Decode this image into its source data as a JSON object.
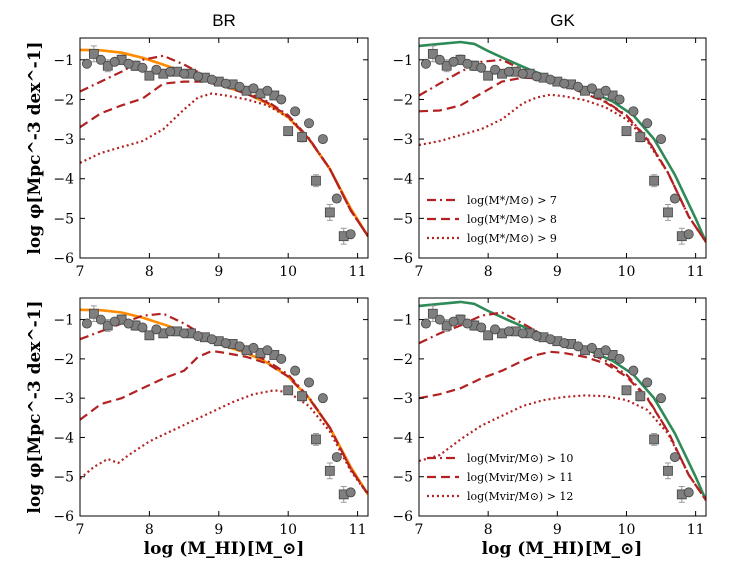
{
  "figure": {
    "xlabel": "log (M_HI)[M_⊙]",
    "ylabel": "log φ[Mpc^-3 dex^-1]",
    "xlim": [
      7.0,
      11.15
    ],
    "ylim": [
      -6.0,
      -0.45
    ],
    "xticks": [
      7,
      8,
      9,
      10,
      11
    ],
    "yticks": [
      -1,
      -2,
      -3,
      -4,
      -5,
      -6
    ]
  },
  "chart_data": [
    {
      "type": "line",
      "title": "BR",
      "model": "BR",
      "model_color": "#ff8c00",
      "model_line": {
        "x": [
          7.0,
          7.3,
          7.6,
          7.9,
          8.2,
          8.5,
          8.8,
          9.1,
          9.4,
          9.7,
          10.0,
          10.3,
          10.6,
          10.9,
          11.15
        ],
        "y": [
          -0.75,
          -0.76,
          -0.82,
          -0.95,
          -1.12,
          -1.3,
          -1.5,
          -1.68,
          -1.85,
          -2.1,
          -2.45,
          -3.0,
          -3.75,
          -4.75,
          -5.45
        ]
      },
      "series": [
        {
          "name": "log(M*/M⊙) > 7",
          "style": "dashdot",
          "color": "#b22222",
          "x": [
            7.0,
            7.3,
            7.6,
            7.9,
            8.2,
            8.5,
            8.8,
            9.1,
            9.4,
            9.7,
            10.0,
            10.3,
            10.6,
            10.9,
            11.15
          ],
          "y": [
            -1.8,
            -1.55,
            -1.3,
            -1.0,
            -0.9,
            -1.12,
            -1.4,
            -1.65,
            -1.82,
            -2.05,
            -2.4,
            -2.98,
            -3.75,
            -4.8,
            -5.45
          ]
        },
        {
          "name": "log(M*/M⊙) > 8",
          "style": "dashed",
          "color": "#b22222",
          "x": [
            7.0,
            7.3,
            7.6,
            7.9,
            8.2,
            8.5,
            8.8,
            9.1,
            9.4,
            9.7,
            10.0,
            10.3,
            10.6,
            10.9,
            11.15
          ],
          "y": [
            -2.7,
            -2.35,
            -2.15,
            -1.98,
            -1.6,
            -1.55,
            -1.55,
            -1.68,
            -1.86,
            -2.08,
            -2.42,
            -3.0,
            -3.75,
            -4.8,
            -5.45
          ]
        },
        {
          "name": "log(M*/M⊙) > 9",
          "style": "dotted",
          "color": "#b22222",
          "x": [
            7.0,
            7.3,
            7.6,
            7.9,
            8.2,
            8.5,
            8.7,
            8.9,
            9.1,
            9.4,
            9.7,
            10.0,
            10.3,
            10.6,
            10.9,
            11.15
          ],
          "y": [
            -3.6,
            -3.35,
            -3.2,
            -3.05,
            -2.75,
            -2.25,
            -1.95,
            -1.85,
            -1.9,
            -2.0,
            -2.15,
            -2.45,
            -3.0,
            -3.75,
            -4.8,
            -5.45
          ]
        }
      ],
      "legend": false
    },
    {
      "type": "line",
      "title": "GK",
      "model": "GK",
      "model_color": "#2e8b57",
      "model_line": {
        "x": [
          7.0,
          7.3,
          7.6,
          7.8,
          8.0,
          8.3,
          8.6,
          8.9,
          9.2,
          9.5,
          9.8,
          10.1,
          10.4,
          10.7,
          11.0,
          11.15
        ],
        "y": [
          -0.65,
          -0.6,
          -0.55,
          -0.6,
          -0.78,
          -1.02,
          -1.25,
          -1.45,
          -1.62,
          -1.82,
          -2.05,
          -2.4,
          -3.0,
          -3.9,
          -5.0,
          -5.6
        ]
      },
      "series": [
        {
          "name": "log(M*/M⊙) > 7",
          "style": "dashdot",
          "color": "#b22222",
          "x": [
            7.0,
            7.3,
            7.6,
            7.9,
            8.2,
            8.5,
            8.8,
            9.1,
            9.4,
            9.7,
            10.0,
            10.3,
            10.6,
            10.9,
            11.15
          ],
          "y": [
            -1.9,
            -1.6,
            -1.3,
            -1.05,
            -1.0,
            -1.25,
            -1.4,
            -1.62,
            -1.82,
            -2.05,
            -2.4,
            -2.98,
            -3.85,
            -4.95,
            -5.6
          ]
        },
        {
          "name": "log(M*/M⊙) > 8",
          "style": "dashed",
          "color": "#b22222",
          "x": [
            7.0,
            7.3,
            7.6,
            7.9,
            8.2,
            8.5,
            8.8,
            9.1,
            9.4,
            9.7,
            10.0,
            10.3,
            10.6,
            10.9,
            11.15
          ],
          "y": [
            -2.3,
            -2.28,
            -2.15,
            -1.85,
            -1.55,
            -1.45,
            -1.48,
            -1.65,
            -1.85,
            -2.07,
            -2.42,
            -3.0,
            -3.85,
            -4.95,
            -5.6
          ]
        },
        {
          "name": "log(M*/M⊙) > 9",
          "style": "dotted",
          "color": "#b22222",
          "x": [
            7.0,
            7.3,
            7.6,
            7.9,
            8.2,
            8.5,
            8.7,
            8.9,
            9.1,
            9.4,
            9.7,
            10.0,
            10.3,
            10.6,
            10.9,
            11.15
          ],
          "y": [
            -3.15,
            -3.05,
            -2.9,
            -2.75,
            -2.5,
            -2.1,
            -1.95,
            -1.88,
            -1.92,
            -2.02,
            -2.2,
            -2.5,
            -3.05,
            -3.85,
            -4.95,
            -5.6
          ]
        }
      ],
      "legend": true,
      "legend_position": "lower-left",
      "legend_labels": [
        "log(M*/M⊙) > 7",
        "log(M*/M⊙) > 8",
        "log(M*/M⊙) > 9"
      ]
    },
    {
      "type": "line",
      "title": "",
      "model": "BR",
      "model_color": "#ff8c00",
      "model_line": {
        "x": [
          7.0,
          7.3,
          7.6,
          7.9,
          8.2,
          8.5,
          8.8,
          9.1,
          9.4,
          9.7,
          10.0,
          10.3,
          10.6,
          10.9,
          11.15
        ],
        "y": [
          -0.75,
          -0.76,
          -0.82,
          -0.95,
          -1.12,
          -1.3,
          -1.5,
          -1.68,
          -1.85,
          -2.1,
          -2.45,
          -3.0,
          -3.75,
          -4.75,
          -5.45
        ]
      },
      "series": [
        {
          "name": "log(Mvir/M⊙) > 10",
          "style": "dashdot",
          "color": "#b22222",
          "x": [
            7.0,
            7.3,
            7.6,
            7.9,
            8.2,
            8.5,
            8.8,
            9.1,
            9.4,
            9.7,
            10.0,
            10.3,
            10.6,
            10.9,
            11.15
          ],
          "y": [
            -1.5,
            -1.3,
            -1.1,
            -0.9,
            -0.85,
            -1.1,
            -1.42,
            -1.65,
            -1.82,
            -2.05,
            -2.4,
            -2.98,
            -3.75,
            -4.8,
            -5.45
          ]
        },
        {
          "name": "log(Mvir/M⊙) > 11",
          "style": "dashed",
          "color": "#b22222",
          "x": [
            7.0,
            7.3,
            7.6,
            7.9,
            8.2,
            8.5,
            8.7,
            8.9,
            9.1,
            9.4,
            9.7,
            10.0,
            10.3,
            10.6,
            10.9,
            11.15
          ],
          "y": [
            -3.55,
            -3.15,
            -3.0,
            -2.75,
            -2.5,
            -2.3,
            -1.95,
            -1.8,
            -1.85,
            -1.95,
            -2.12,
            -2.45,
            -3.0,
            -3.75,
            -4.8,
            -5.45
          ]
        },
        {
          "name": "log(Mvir/M⊙) > 12",
          "style": "dotted",
          "color": "#b22222",
          "x": [
            7.0,
            7.2,
            7.4,
            7.55,
            7.7,
            8.0,
            8.3,
            8.6,
            8.9,
            9.2,
            9.5,
            9.8,
            10.0,
            10.3,
            10.6,
            10.9,
            11.15
          ],
          "y": [
            -5.05,
            -4.75,
            -4.55,
            -4.65,
            -4.45,
            -4.1,
            -3.85,
            -3.6,
            -3.35,
            -3.1,
            -2.9,
            -2.8,
            -2.85,
            -3.2,
            -3.85,
            -4.85,
            -5.45
          ]
        }
      ],
      "legend": false
    },
    {
      "type": "line",
      "title": "",
      "model": "GK",
      "model_color": "#2e8b57",
      "model_line": {
        "x": [
          7.0,
          7.3,
          7.6,
          7.8,
          8.0,
          8.3,
          8.6,
          8.9,
          9.2,
          9.5,
          9.8,
          10.1,
          10.4,
          10.7,
          11.0,
          11.15
        ],
        "y": [
          -0.65,
          -0.6,
          -0.55,
          -0.6,
          -0.78,
          -1.02,
          -1.25,
          -1.45,
          -1.62,
          -1.82,
          -2.05,
          -2.4,
          -3.0,
          -3.9,
          -5.0,
          -5.6
        ]
      },
      "series": [
        {
          "name": "log(Mvir/M⊙) > 10",
          "style": "dashdot",
          "color": "#b22222",
          "x": [
            7.0,
            7.3,
            7.6,
            7.9,
            8.2,
            8.5,
            8.8,
            9.1,
            9.4,
            9.7,
            10.0,
            10.3,
            10.6,
            10.9,
            11.15
          ],
          "y": [
            -1.6,
            -1.35,
            -1.15,
            -0.9,
            -0.82,
            -1.1,
            -1.4,
            -1.62,
            -1.82,
            -2.05,
            -2.4,
            -2.98,
            -3.85,
            -4.95,
            -5.6
          ]
        },
        {
          "name": "log(Mvir/M⊙) > 11",
          "style": "dashed",
          "color": "#b22222",
          "x": [
            7.0,
            7.3,
            7.6,
            7.9,
            8.2,
            8.5,
            8.7,
            8.9,
            9.1,
            9.4,
            9.7,
            10.0,
            10.3,
            10.6,
            10.9,
            11.15
          ],
          "y": [
            -3.0,
            -2.9,
            -2.75,
            -2.5,
            -2.3,
            -2.05,
            -1.9,
            -1.82,
            -1.85,
            -1.95,
            -2.12,
            -2.45,
            -3.0,
            -3.85,
            -4.95,
            -5.6
          ]
        },
        {
          "name": "log(Mvir/M⊙) > 12",
          "style": "dotted",
          "color": "#b22222",
          "x": [
            7.0,
            7.3,
            7.6,
            7.9,
            8.2,
            8.5,
            8.8,
            9.1,
            9.4,
            9.7,
            10.0,
            10.3,
            10.6,
            10.9,
            11.15
          ],
          "y": [
            -4.6,
            -4.45,
            -4.05,
            -3.7,
            -3.45,
            -3.2,
            -3.05,
            -2.97,
            -2.93,
            -2.95,
            -3.05,
            -3.3,
            -3.9,
            -4.95,
            -5.6
          ]
        }
      ],
      "legend": true,
      "legend_position": "lower-left",
      "legend_labels": [
        "log(Mvir/M⊙) > 10",
        "log(Mvir/M⊙) > 11",
        "log(Mvir/M⊙) > 12"
      ]
    }
  ],
  "observations": {
    "circles": {
      "x": [
        7.1,
        7.3,
        7.5,
        7.7,
        7.9,
        8.1,
        8.3,
        8.5,
        8.7,
        8.9,
        9.1,
        9.3,
        9.5,
        9.7,
        9.9,
        10.1,
        10.3,
        10.5,
        10.7,
        10.9
      ],
      "y": [
        -1.1,
        -1.0,
        -1.05,
        -1.1,
        -1.2,
        -1.25,
        -1.3,
        -1.35,
        -1.42,
        -1.5,
        -1.6,
        -1.68,
        -1.72,
        -1.78,
        -2.0,
        -2.3,
        -2.6,
        -3.0,
        -4.5,
        -5.4
      ]
    },
    "squares": {
      "x": [
        7.2,
        7.4,
        7.6,
        7.8,
        8.0,
        8.2,
        8.4,
        8.6,
        8.8,
        9.0,
        9.2,
        9.4,
        9.6,
        9.8,
        10.0,
        10.2,
        10.4,
        10.6,
        10.8
      ],
      "y": [
        -0.85,
        -1.15,
        -1.0,
        -1.15,
        -1.4,
        -1.35,
        -1.3,
        -1.35,
        -1.45,
        -1.55,
        -1.62,
        -1.78,
        -1.85,
        -1.9,
        -2.8,
        -2.95,
        -4.05,
        -4.85,
        -5.45
      ],
      "yerr": [
        0.2,
        0.15,
        0.12,
        0.12,
        0.1,
        0.08,
        0.08,
        0.08,
        0.08,
        0.08,
        0.08,
        0.08,
        0.08,
        0.08,
        0.1,
        0.12,
        0.15,
        0.2,
        0.2
      ]
    }
  }
}
